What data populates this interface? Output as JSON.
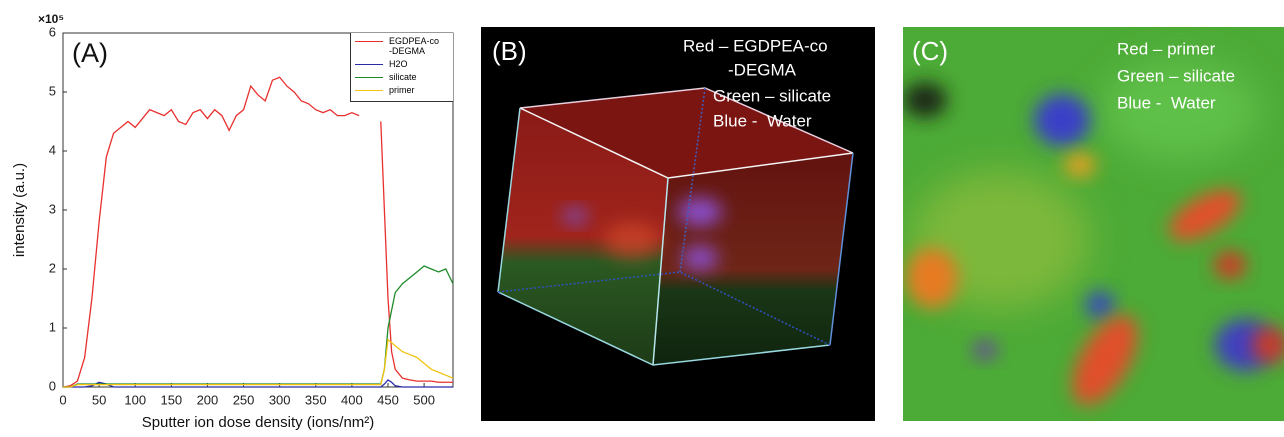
{
  "chart_data": {
    "type": "line",
    "panel_label": "(A)",
    "y_scale_label": "×10⁵",
    "xlabel": "Sputter ion dose density (ions/nm²)",
    "ylabel": "intensity (a.u.)",
    "xlim": [
      0,
      540
    ],
    "ylim": [
      0,
      6
    ],
    "xticks": [
      0,
      50,
      100,
      150,
      200,
      250,
      300,
      350,
      400,
      450,
      500
    ],
    "yticks": [
      0,
      1,
      2,
      3,
      4,
      5,
      6
    ],
    "grid": false,
    "legend": "upper right",
    "x": [
      0,
      10,
      20,
      30,
      40,
      50,
      60,
      70,
      80,
      90,
      100,
      110,
      120,
      130,
      140,
      150,
      160,
      170,
      180,
      190,
      200,
      210,
      220,
      230,
      240,
      250,
      260,
      270,
      280,
      290,
      300,
      310,
      320,
      330,
      340,
      350,
      360,
      370,
      380,
      390,
      400,
      410,
      420,
      430,
      440,
      445,
      450,
      455,
      460,
      470,
      480,
      490,
      500,
      510,
      520,
      530,
      540
    ],
    "series": [
      {
        "name": "EGDPEA-co\n-DEGMA",
        "color": "#e8302e",
        "values": [
          0,
          0.02,
          0.1,
          0.5,
          1.5,
          2.8,
          3.9,
          4.3,
          4.4,
          4.5,
          4.4,
          4.55,
          4.7,
          4.65,
          4.6,
          4.7,
          4.5,
          4.45,
          4.65,
          4.7,
          4.55,
          4.7,
          4.6,
          4.35,
          4.6,
          4.7,
          5.1,
          4.95,
          4.85,
          5.2,
          5.25,
          5.1,
          5.0,
          4.85,
          4.8,
          4.7,
          4.65,
          4.7,
          4.6,
          4.6,
          4.65,
          4.6,
          null,
          null,
          4.5,
          3.0,
          1.5,
          0.6,
          0.3,
          0.15,
          0.12,
          0.1,
          0.1,
          0.1,
          0.08,
          0.08,
          0.08
        ]
      },
      {
        "name": "H2O",
        "color": "#2b2ba8",
        "values": [
          0,
          0,
          0,
          0,
          0.02,
          0.08,
          0.05,
          0,
          0,
          0,
          0,
          0,
          0,
          0,
          0,
          0,
          0,
          0,
          0,
          0,
          0,
          0,
          0,
          0,
          0,
          0,
          0,
          0,
          0,
          0,
          0,
          0,
          0,
          0,
          0,
          0,
          0,
          0,
          0,
          0,
          0,
          0,
          0,
          0,
          0,
          0.05,
          0.12,
          0.08,
          0.02,
          0,
          0,
          0,
          0,
          0,
          0,
          0,
          0
        ]
      },
      {
        "name": "silicate",
        "color": "#1f8a2a",
        "values": [
          0,
          0,
          0.05,
          0.05,
          0.05,
          0.05,
          0.05,
          0.05,
          0.05,
          0.05,
          0.05,
          0.05,
          0.05,
          0.05,
          0.05,
          0.05,
          0.05,
          0.05,
          0.05,
          0.05,
          0.05,
          0.05,
          0.05,
          0.05,
          0.05,
          0.05,
          0.05,
          0.05,
          0.05,
          0.05,
          0.05,
          0.05,
          0.05,
          0.05,
          0.05,
          0.05,
          0.05,
          0.05,
          0.05,
          0.05,
          0.05,
          0.05,
          0.05,
          0.05,
          0.05,
          0.3,
          1.0,
          1.3,
          1.6,
          1.75,
          1.85,
          1.95,
          2.05,
          2.0,
          1.95,
          2.0,
          1.75
        ]
      },
      {
        "name": "primer",
        "color": "#f2c40f",
        "values": [
          0,
          0,
          0.04,
          0.04,
          0.04,
          0.04,
          0.04,
          0.04,
          0.04,
          0.04,
          0.04,
          0.04,
          0.04,
          0.04,
          0.04,
          0.04,
          0.04,
          0.04,
          0.04,
          0.04,
          0.04,
          0.04,
          0.04,
          0.04,
          0.04,
          0.04,
          0.04,
          0.04,
          0.04,
          0.04,
          0.04,
          0.04,
          0.04,
          0.04,
          0.04,
          0.04,
          0.04,
          0.04,
          0.04,
          0.04,
          0.04,
          0.04,
          0.04,
          0.04,
          0.04,
          0.3,
          0.8,
          0.75,
          0.7,
          0.6,
          0.55,
          0.5,
          0.4,
          0.3,
          0.25,
          0.2,
          0.15
        ]
      }
    ]
  },
  "panels": {
    "B": {
      "label": "(B)",
      "legend": [
        "Red – EGDPEA-co",
        "-DEGMA",
        "Green – silicate",
        "Blue -  Water"
      ]
    },
    "C": {
      "label": "(C)",
      "legend": [
        "Red – primer",
        "Green – silicate",
        "Blue -  Water"
      ]
    }
  }
}
